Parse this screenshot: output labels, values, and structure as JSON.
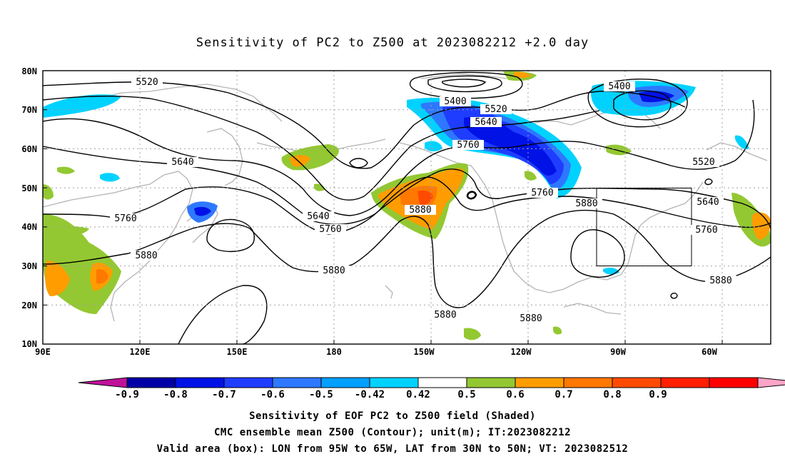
{
  "title": "Sensitivity of PC2 to Z500 at 2023082212 +2.0 day",
  "lat_labels": [
    "80N",
    "70N",
    "60N",
    "50N",
    "40N",
    "30N",
    "20N",
    "10N"
  ],
  "lon_labels": [
    "90E",
    "120E",
    "150E",
    "180",
    "150W",
    "120W",
    "90W",
    "60W"
  ],
  "contour_labels": [
    "5400",
    "5400",
    "5520",
    "5520",
    "5520",
    "5640",
    "5640",
    "5640",
    "5640",
    "5760",
    "5760",
    "5760",
    "5760",
    "5760",
    "5880",
    "5880",
    "5880",
    "5880",
    "5880",
    "5880"
  ],
  "colorbar": {
    "labels": [
      "-0.9",
      "-0.8",
      "-0.7",
      "-0.6",
      "-0.5",
      "-0.42",
      "0.42",
      "0.5",
      "0.6",
      "0.7",
      "0.8",
      "0.9"
    ],
    "colors": [
      "#c0119b",
      "#0000a6",
      "#0012e6",
      "#1f3dff",
      "#2e78ff",
      "#00a0ff",
      "#00d2ff",
      "#ffffff",
      "#93c832",
      "#ff9d00",
      "#ff7800",
      "#ff4b00",
      "#ff1e00",
      "#ff0000",
      "#ffa5c8"
    ]
  },
  "captions": {
    "line1": "Sensitivity of EOF PC2 to Z500 field (Shaded)",
    "line2": "CMC ensemble mean Z500 (Contour); unit(m); IT:2023082212",
    "line3": "Valid area (box): LON from 95W to 65W, LAT from 30N to 50N; VT: 2023082512"
  }
}
